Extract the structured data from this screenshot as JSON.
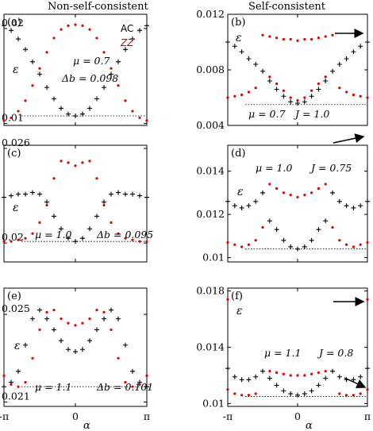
{
  "column_titles": {
    "left": "Non-self-consistent",
    "right": "Self-consistent"
  },
  "legend": {
    "ac": "AC",
    "zz": "ZZ",
    "ac_color": "#000000",
    "zz_color": "#e00000"
  },
  "x_ticks": [
    "-π",
    "0",
    "π"
  ],
  "x_label": "α",
  "y_label": "ε",
  "chart_data": [
    {
      "type": "scatter",
      "panel": "(a)",
      "ylim": [
        0.0098,
        0.0215
      ],
      "yticks": [
        "0.01",
        "0.02"
      ],
      "annotations": [
        "μ = 0.7",
        "Δb = 0.098"
      ],
      "reference_line": 0.0108,
      "arrows": 0,
      "series": [
        {
          "name": "AC",
          "marker": "plus",
          "x": [
            -3.1416,
            -2.8274,
            -2.5133,
            -2.1991,
            -1.885,
            -1.5708,
            -1.2566,
            -0.9425,
            -0.6283,
            -0.3142,
            0,
            0.3142,
            0.6283,
            0.9425,
            1.2566,
            1.5708,
            1.885,
            2.1991,
            2.5133,
            2.8274,
            3.1416
          ],
          "y": [
            0.0203,
            0.0198,
            0.0189,
            0.0178,
            0.0165,
            0.0152,
            0.0138,
            0.0126,
            0.0116,
            0.011,
            0.0108,
            0.011,
            0.0116,
            0.0126,
            0.0138,
            0.0152,
            0.0165,
            0.0178,
            0.0189,
            0.0198,
            0.0203
          ]
        },
        {
          "name": "ZZ",
          "marker": "dot",
          "x": [
            -3.1416,
            -2.8274,
            -2.5133,
            -2.1991,
            -1.885,
            -1.5708,
            -1.2566,
            -0.9425,
            -0.6283,
            -0.3142,
            0,
            0.3142,
            0.6283,
            0.9425,
            1.2566,
            1.5708,
            1.885,
            2.1991,
            2.5133,
            2.8274,
            3.1416
          ],
          "y": [
            0.0103,
            0.0106,
            0.0113,
            0.0124,
            0.014,
            0.0158,
            0.0175,
            0.019,
            0.0199,
            0.0203,
            0.0204,
            0.0203,
            0.0199,
            0.019,
            0.0175,
            0.0158,
            0.014,
            0.0124,
            0.0113,
            0.0106,
            0.0103
          ]
        }
      ]
    },
    {
      "type": "scatter",
      "panel": "(b)",
      "ylim": [
        0.004,
        0.012
      ],
      "yticks": [
        "0.004",
        "0.008",
        "0.012"
      ],
      "annotations": [
        "μ = 0.7",
        "J = 1.0"
      ],
      "reference_line": 0.0055,
      "arrows": 1,
      "series": [
        {
          "name": "AC",
          "marker": "plus",
          "x": [
            -3.1416,
            -2.8274,
            -2.5133,
            -2.1991,
            -1.885,
            -1.5708,
            -1.2566,
            -0.9425,
            -0.6283,
            -0.3142,
            0,
            0.3142,
            0.6283,
            0.9425,
            1.2566,
            1.5708,
            1.885,
            2.1991,
            2.5133,
            2.8274,
            3.1416
          ],
          "y": [
            0.01,
            0.0097,
            0.0093,
            0.0088,
            0.0084,
            0.0079,
            0.0072,
            0.0066,
            0.0061,
            0.0057,
            0.0056,
            0.0057,
            0.0061,
            0.0066,
            0.0072,
            0.0079,
            0.0084,
            0.0088,
            0.0093,
            0.0097,
            0.01
          ]
        },
        {
          "name": "ZZ",
          "marker": "dot",
          "x": [
            -3.1416,
            -2.8274,
            -2.5133,
            -2.1991,
            -1.885,
            -1.2566,
            -0.9425,
            -0.6283,
            -0.3142,
            0,
            0.3142,
            0.6283,
            0.9425,
            1.2566,
            1.885,
            2.1991,
            2.5133,
            2.8274,
            3.1416
          ],
          "y": [
            0.006,
            0.0061,
            0.0062,
            0.0064,
            0.0067,
            0.0075,
            0.007,
            0.0065,
            0.006,
            0.0058,
            0.006,
            0.0065,
            0.007,
            0.0075,
            0.0067,
            0.0064,
            0.0062,
            0.0061,
            0.006
          ]
        },
        {
          "name": "ZZ-upper",
          "marker": "dot",
          "x": [
            -1.5708,
            -1.2566,
            -0.9425,
            -0.6283,
            -0.3142,
            0,
            0.3142,
            0.6283,
            0.9425,
            1.2566,
            1.5708
          ],
          "y": [
            0.0105,
            0.0104,
            0.0103,
            0.0102,
            0.0102,
            0.0101,
            0.0102,
            0.0102,
            0.0103,
            0.0104,
            0.0105
          ]
        }
      ]
    },
    {
      "type": "scatter",
      "panel": "(c)",
      "ylim": [
        0.0188,
        0.0262
      ],
      "yticks": [
        "0.02",
        "0.026"
      ],
      "annotations": [
        "μ = 1.0",
        "Δb = 0.095"
      ],
      "reference_line": 0.0201,
      "arrows": 0,
      "series": [
        {
          "name": "AC",
          "marker": "plus",
          "x": [
            -3.1416,
            -2.8274,
            -2.5133,
            -2.1991,
            -1.885,
            -1.5708,
            -1.2566,
            -0.9425,
            -0.6283,
            -0.3142,
            0,
            0.3142,
            0.6283,
            0.9425,
            1.2566,
            1.5708,
            1.885,
            2.1991,
            2.5133,
            2.8274,
            3.1416
          ],
          "y": [
            0.0229,
            0.023,
            0.0231,
            0.0231,
            0.0232,
            0.0231,
            0.0226,
            0.0217,
            0.0209,
            0.0203,
            0.0201,
            0.0203,
            0.0209,
            0.0217,
            0.0226,
            0.0231,
            0.0232,
            0.0231,
            0.0231,
            0.023,
            0.0229
          ]
        },
        {
          "name": "ZZ",
          "marker": "dot",
          "x": [
            -3.1416,
            -2.8274,
            -2.5133,
            -2.1991,
            -1.885,
            -1.5708,
            -1.2566,
            -0.9425,
            -0.6283,
            -0.3142,
            0,
            0.3142,
            0.6283,
            0.9425,
            1.2566,
            1.5708,
            1.885,
            2.1991,
            2.5133,
            2.8274,
            3.1416
          ],
          "y": [
            0.0201,
            0.0201,
            0.0202,
            0.0203,
            0.0206,
            0.0213,
            0.0224,
            0.0241,
            0.0252,
            0.0251,
            0.0249,
            0.0251,
            0.0252,
            0.0241,
            0.0224,
            0.0213,
            0.0206,
            0.0203,
            0.0202,
            0.0201,
            0.0201
          ]
        }
      ]
    },
    {
      "type": "scatter",
      "panel": "(d)",
      "ylim": [
        0.0098,
        0.0152
      ],
      "yticks": [
        "0.01",
        "0.012",
        "0.014"
      ],
      "annotations": [
        "μ = 1.0",
        "J = 0.75"
      ],
      "reference_line": 0.0104,
      "arrows": 1,
      "series": [
        {
          "name": "AC",
          "marker": "plus",
          "x": [
            -3.1416,
            -2.8274,
            -2.5133,
            -2.1991,
            -1.885,
            -1.5708,
            -1.2566,
            -0.9425,
            -0.6283,
            -0.3142,
            0,
            0.3142,
            0.6283,
            0.9425,
            1.2566,
            1.5708,
            1.885,
            2.1991,
            2.5133,
            2.8274,
            3.1416
          ],
          "y": [
            0.0126,
            0.0124,
            0.0123,
            0.0124,
            0.0126,
            0.013,
            0.0117,
            0.0113,
            0.0108,
            0.0105,
            0.0104,
            0.0105,
            0.0108,
            0.0113,
            0.0117,
            0.013,
            0.0126,
            0.0124,
            0.0123,
            0.0124,
            0.0126
          ]
        },
        {
          "name": "ZZ",
          "marker": "dot",
          "x": [
            -3.1416,
            -2.8274,
            -2.5133,
            -2.1991,
            -1.885,
            -1.5708,
            -1.2566,
            -0.9425,
            -0.6283,
            -0.3142,
            0,
            0.3142,
            0.6283,
            0.9425,
            1.2566,
            1.5708,
            1.885,
            2.1991,
            2.5133,
            2.8274,
            3.1416
          ],
          "y": [
            0.0107,
            0.0106,
            0.0105,
            0.0106,
            0.0108,
            0.0114,
            0.0134,
            0.0132,
            0.013,
            0.0129,
            0.0128,
            0.0129,
            0.013,
            0.0132,
            0.0134,
            0.0114,
            0.0108,
            0.0106,
            0.0105,
            0.0106,
            0.0107
          ]
        }
      ]
    },
    {
      "type": "scatter",
      "panel": "(e)",
      "ylim": [
        0.0208,
        0.0262
      ],
      "yticks": [
        "0.021",
        "0.025"
      ],
      "annotations": [
        "μ = 1.1",
        "Δb = 0.101"
      ],
      "reference_line": 0.0217,
      "arrows": 0,
      "series": [
        {
          "name": "AC",
          "marker": "plus",
          "x": [
            -3.1416,
            -2.8274,
            -2.5133,
            -2.1991,
            -1.885,
            -1.5708,
            -1.2566,
            -0.9425,
            -0.6283,
            -0.3142,
            0,
            0.3142,
            0.6283,
            0.9425,
            1.2566,
            1.5708,
            1.885,
            2.1991,
            2.5133,
            2.8274,
            3.1416
          ],
          "y": [
            0.0217,
            0.0219,
            0.0224,
            0.0236,
            0.0248,
            0.0252,
            0.0248,
            0.0243,
            0.0238,
            0.0234,
            0.0233,
            0.0234,
            0.0238,
            0.0243,
            0.0248,
            0.0252,
            0.0248,
            0.0236,
            0.0224,
            0.0219,
            0.0217
          ]
        },
        {
          "name": "ZZ",
          "marker": "dot",
          "x": [
            -3.1416,
            -2.8274,
            -2.5133,
            -2.1991,
            -1.885,
            -1.5708,
            -1.2566,
            -0.9425,
            -0.6283,
            -0.3142,
            0,
            0.3142,
            0.6283,
            0.9425,
            1.2566,
            1.5708,
            1.885,
            2.1991,
            2.5133,
            2.8274,
            3.1416
          ],
          "y": [
            0.0222,
            0.0218,
            0.0217,
            0.0219,
            0.023,
            0.0243,
            0.0251,
            0.0252,
            0.0248,
            0.0246,
            0.0245,
            0.0246,
            0.0248,
            0.0252,
            0.0251,
            0.0243,
            0.023,
            0.0219,
            0.0217,
            0.0218,
            0.0222
          ]
        }
      ]
    },
    {
      "type": "scatter",
      "panel": "(f)",
      "ylim": [
        0.0098,
        0.0182
      ],
      "yticks": [
        "0.01",
        "0.014",
        "0.018"
      ],
      "annotations": [
        "μ = 1.1",
        "J = 0.8"
      ],
      "reference_line": 0.0105,
      "arrows": 2,
      "series": [
        {
          "name": "AC",
          "marker": "plus",
          "x": [
            -3.1416,
            -2.8274,
            -2.5133,
            -2.1991,
            -1.885,
            -1.5708,
            -1.2566,
            -0.9425,
            -0.6283,
            -0.3142,
            0,
            0.3142,
            0.6283,
            0.9425,
            1.2566,
            1.5708,
            1.885,
            2.1991,
            2.5133,
            2.8274,
            3.1416
          ],
          "y": [
            0.0125,
            0.0119,
            0.0117,
            0.0117,
            0.0119,
            0.0123,
            0.0118,
            0.0113,
            0.0109,
            0.0107,
            0.0106,
            0.0107,
            0.0109,
            0.0113,
            0.0118,
            0.0123,
            0.0119,
            0.0117,
            0.0117,
            0.0119,
            0.0125
          ]
        },
        {
          "name": "ZZ",
          "marker": "dot",
          "x": [
            -3.1416,
            -2.8274,
            -2.5133,
            -2.1991,
            -1.885,
            -1.2566,
            -0.9425,
            -0.6283,
            -0.3142,
            0,
            0.3142,
            0.6283,
            0.9425,
            1.2566,
            1.885,
            2.1991,
            2.5133,
            2.8274,
            3.1416
          ],
          "y": [
            0.011,
            0.0107,
            0.0106,
            0.0106,
            0.0107,
            0.0123,
            0.0122,
            0.0121,
            0.012,
            0.012,
            0.012,
            0.0121,
            0.0122,
            0.0123,
            0.0107,
            0.0106,
            0.0106,
            0.0107,
            0.011
          ]
        },
        {
          "name": "ZZ-upper",
          "marker": "dot",
          "x": [
            -3.1416,
            3.1416
          ],
          "y": [
            0.0174,
            0.0174
          ]
        }
      ]
    }
  ]
}
